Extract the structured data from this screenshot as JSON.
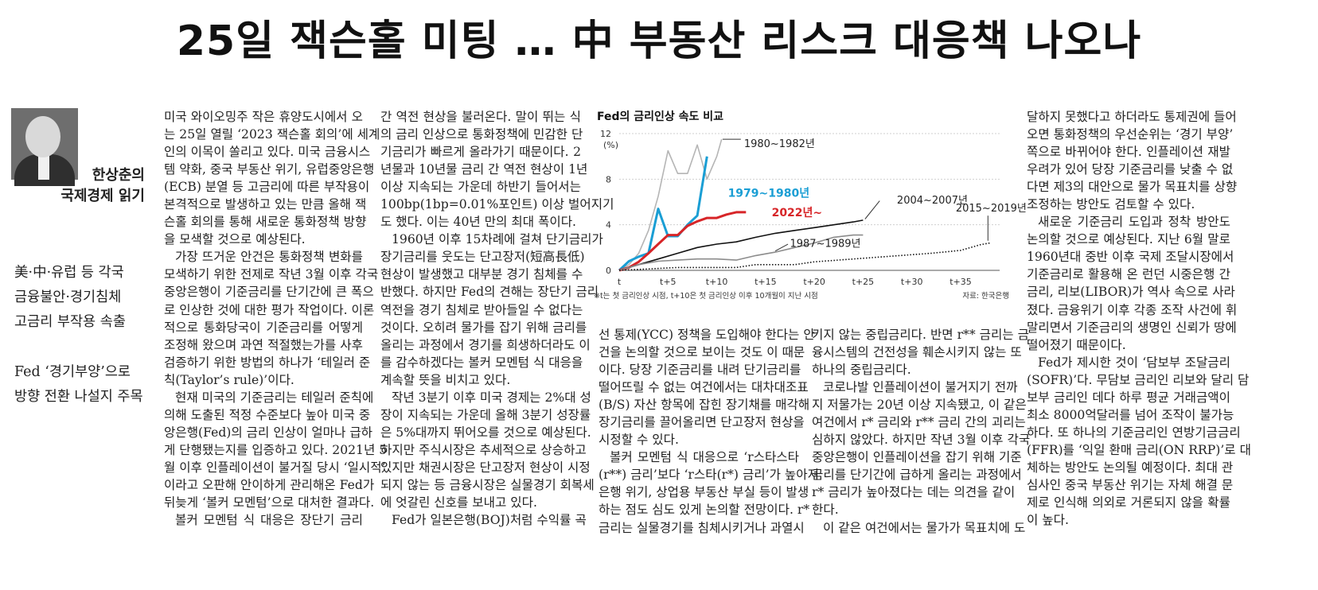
{
  "headline": "25일 잭슨홀 미팅 … 中 부동산 리스크 대응책 나오나",
  "author": {
    "name": "한상춘의",
    "column": "국제경제 읽기"
  },
  "subheads": [
    "美·中·유럽 등 각국",
    "금융불안·경기침체",
    "고금리 부작용 속출",
    "Fed ‘경기부양’으로",
    "방향 전환 나설지 주목"
  ],
  "columns": {
    "c1": [
      "미국 와이오밍주 작은 휴양도시에서 오",
      "는 25일 열릴 ‘2023 잭슨홀 회의’에 세계",
      "인의 이목이 쏠리고 있다. 미국 금융시스",
      "템 약화, 중국 부동산 위기, 유럽중앙은행",
      "(ECB) 분열 등 고금리에 따른 부작용이",
      "본격적으로 발생하고 있는 만큼 올해 잭",
      "슨홀 회의를 통해 새로운 통화정책 방향",
      "을 모색할 것으로 예상된다.",
      "가장 뜨거운 안건은 통화정책 변화를",
      "모색하기 위한 전제로 작년 3월 이후 각국",
      "중앙은행이 기준금리를 단기간에 큰 폭으",
      "로 인상한 것에 대한 평가 작업이다. 이론",
      "적으로 통화당국이 기준금리를 어떻게",
      "조정해 왔으며 과연 적절했는가를 사후",
      "검증하기 위한 방법의 하나가 ‘테일러 준",
      "칙(Taylor’s rule)’이다.",
      "현재 미국의 기준금리는 테일러 준칙에",
      "의해 도출된 적정 수준보다 높아 미국 중",
      "앙은행(Fed)의 금리 인상이 얼마나 급하",
      "게 단행됐는지를 입증하고 있다. 2021년 5",
      "월 이후 인플레이션이 불거질 당시 ‘일시적’",
      "이라고 오판해 안이하게 관리해온 Fed가",
      "뒤늦게 ‘볼커 모멘텀’으로 대처한 결과다.",
      "볼커 모멘텀 식 대응은 장단기 금리"
    ],
    "c2": [
      "간 역전 현상을 불러온다. 말이 뛰는 식",
      "의 금리 인상으로 통화정책에 민감한 단",
      "기금리가 빠르게 올라가기 때문이다. 2",
      "년물과 10년물 금리 간 역전 현상이 1년",
      "이상 지속되는 가운데 하반기 들어서는",
      "100bp(1bp=0.01%포인트) 이상 벌어지기",
      "도 했다. 이는 40년 만의 최대 폭이다.",
      "1960년 이후 15차례에 걸쳐 단기금리가",
      "장기금리를 웃도는 단고장저(短高長低)",
      "현상이 발생했고 대부분 경기 침체를 수",
      "반했다. 하지만 Fed의 견해는 장단기 금리",
      "역전을 경기 침체로 받아들일 수 없다는",
      "것이다. 오히려 물가를 잡기 위해 금리를",
      "올리는 과정에서 경기를 희생하더라도 이",
      "를 감수하겠다는 볼커 모멘텀 식 대응을",
      "계속할 뜻을 비치고 있다.",
      "작년 3분기 이후 미국 경제는 2%대 성",
      "장이 지속되는 가운데 올해 3분기 성장률",
      "은 5%대까지 뛰어오를 것으로 예상된다.",
      "하지만 주식시장은 추세적으로 상승하고",
      "있지만 채권시장은 단고장저 현상이 시정",
      "되지 않는 등 금융시장은 실물경기 회복세",
      "에 엇갈린 신호를 보내고 있다.",
      "Fed가 일본은행(BOJ)처럼 수익률 곡"
    ],
    "c3": [
      "선 통제(YCC) 정책을 도입해야 한다는 안",
      "건을 논의할 것으로 보이는 것도 이 때문",
      "이다. 당장 기준금리를 내려 단기금리를",
      "떨어뜨릴 수 없는 여건에서는 대차대조표",
      "(B/S) 자산 항목에 잡힌 장기채를 매각해",
      "장기금리를 끌어올리면 단고장저 현상을",
      "시정할 수 있다.",
      "볼커 모멘텀 식 대응으로 ‘r스타스타",
      "(r**) 금리’보다 ‘r스타(r*) 금리’가 높아져",
      "은행 위기, 상업용 부동산 부실 등이 발생",
      "하는 점도 심도 있게 논의할 전망이다. r*",
      "금리는 실물경기를 침체시키거나 과열시"
    ],
    "c4": [
      "키지 않는 중립금리다. 반면 r** 금리는 금",
      "융시스템의 건전성을 훼손시키지 않는 또",
      "하나의 중립금리다.",
      "코로나발 인플레이션이 불거지기 전까",
      "지 저물가는 20년 이상 지속됐고, 이 같은",
      "여건에서 r* 금리와 r** 금리 간의 괴리는",
      "심하지 않았다. 하지만 작년 3월 이후 각국",
      "중앙은행이 인플레이션을 잡기 위해 기준",
      "금리를 단기간에 급하게 올리는 과정에서",
      "r* 금리가 높아졌다는 데는 의견을 같이",
      "한다.",
      "이 같은 여건에서는 물가가 목표치에 도"
    ],
    "c5": [
      "달하지 못했다고 하더라도 통제권에 들어",
      "오면 통화정책의 우선순위는 ‘경기 부양’",
      "쪽으로 바뀌어야 한다. 인플레이션 재발",
      "우려가 있어 당장 기준금리를 낮출 수 없",
      "다면 제3의 대안으로 물가 목표치를 상향",
      "조정하는 방안도 검토할 수 있다.",
      "새로운 기준금리 도입과 정착 방안도",
      "논의할 것으로 예상된다. 지난 6월 말로",
      "1960년대 중반 이후 국제 조달시장에서",
      "기준금리로 활용해 온 런던 시중은행 간",
      "금리, 리보(LIBOR)가 역사 속으로 사라",
      "졌다. 금융위기 이후 각종 조작 사건에 휘",
      "말리면서 기준금리의 생명인 신뢰가 땅에",
      "떨어졌기 때문이다.",
      "Fed가 제시한 것이 ‘담보부 조달금리",
      "(SOFR)’다. 무담보 금리인 리보와 달리 담",
      "보부 금리인 데다 하루 평균 거래금액이",
      "최소 8000억달러를 넘어 조작이 불가능",
      "하다. 또 하나의 기준금리인 연방기금금리",
      "(FFR)를 ‘익일 환매 금리(ON RRP)’로 대",
      "체하는 방안도 논의될 예정이다. 최대 관",
      "심사인 중국 부동산 위기는 자체 해결 문",
      "제로 인식해 의외로 거론되지 않을 확률",
      "이 높다."
    ]
  },
  "chart_data": {
    "type": "line",
    "title": "Fed의 금리인상 속도 비교",
    "ylabel": "(%)",
    "ylim": [
      0,
      12
    ],
    "yticks": [
      0,
      4,
      8,
      12
    ],
    "xlim": [
      0,
      39
    ],
    "xticks": [
      {
        "x": 0,
        "label": "t"
      },
      {
        "x": 5,
        "label": "t+5"
      },
      {
        "x": 10,
        "label": "t+10"
      },
      {
        "x": 15,
        "label": "t+15"
      },
      {
        "x": 20,
        "label": "t+20"
      },
      {
        "x": 25,
        "label": "t+25"
      },
      {
        "x": 30,
        "label": "t+30"
      },
      {
        "x": 35,
        "label": "t+35"
      }
    ],
    "note": "※t는 첫 금리인상 시점, t+10은 첫 금리인상 이후 10개월이 지난 시점",
    "source": "자료: 한국은행",
    "series": [
      {
        "name": "1980~1982년",
        "color": "#b5b5b5",
        "style": "solid",
        "points": [
          [
            0,
            0
          ],
          [
            1,
            0.5
          ],
          [
            2,
            1.5
          ],
          [
            3,
            3.5
          ],
          [
            4,
            6.5
          ],
          [
            5,
            10.5
          ],
          [
            6,
            8.5
          ],
          [
            7,
            8.5
          ],
          [
            8,
            11
          ],
          [
            9,
            8
          ],
          [
            10,
            10
          ],
          [
            10.5,
            11.5
          ]
        ]
      },
      {
        "name": "1979~1980년",
        "color": "#1a9ed4",
        "style": "solid",
        "points": [
          [
            0,
            0
          ],
          [
            1,
            0.8
          ],
          [
            2,
            1.2
          ],
          [
            3,
            1.5
          ],
          [
            4,
            5.4
          ],
          [
            5,
            3
          ],
          [
            6,
            3
          ],
          [
            7,
            4
          ],
          [
            8,
            4.8
          ],
          [
            9,
            10
          ]
        ]
      },
      {
        "name": "2022년~",
        "color": "#d72528",
        "style": "solid",
        "points": [
          [
            0,
            0
          ],
          [
            1,
            0.25
          ],
          [
            2,
            0.75
          ],
          [
            3,
            1.5
          ],
          [
            4,
            2.3
          ],
          [
            5,
            3.1
          ],
          [
            6,
            3.1
          ],
          [
            7,
            3.9
          ],
          [
            8,
            4.3
          ],
          [
            9,
            4.6
          ],
          [
            10,
            4.6
          ],
          [
            11,
            4.9
          ],
          [
            12,
            5.1
          ],
          [
            13,
            5.1
          ]
        ]
      },
      {
        "name": "2004~2007년",
        "color": "#111111",
        "style": "solid",
        "points": [
          [
            0,
            0
          ],
          [
            2,
            0.5
          ],
          [
            4,
            1
          ],
          [
            6,
            1.5
          ],
          [
            8,
            2
          ],
          [
            10,
            2.3
          ],
          [
            12,
            2.5
          ],
          [
            14,
            2.9
          ],
          [
            16,
            3.25
          ],
          [
            18,
            3.5
          ],
          [
            20,
            3.75
          ],
          [
            22,
            4
          ],
          [
            24,
            4.25
          ],
          [
            25,
            4.4
          ]
        ]
      },
      {
        "name": "1987~1989년",
        "color": "#8c8c8c",
        "style": "solid",
        "points": [
          [
            0,
            0
          ],
          [
            2,
            0.5
          ],
          [
            4,
            0.8
          ],
          [
            6,
            0.9
          ],
          [
            8,
            1
          ],
          [
            10,
            1
          ],
          [
            12,
            0.9
          ],
          [
            14,
            1.3
          ],
          [
            16,
            1.6
          ],
          [
            18,
            2
          ],
          [
            20,
            2.4
          ],
          [
            22,
            2.9
          ],
          [
            24,
            3.1
          ],
          [
            25,
            3.1
          ]
        ]
      },
      {
        "name": "2015~2019년",
        "color": "#111111",
        "style": "dotted",
        "points": [
          [
            0,
            0
          ],
          [
            6,
            0.25
          ],
          [
            12,
            0.25
          ],
          [
            14,
            0.5
          ],
          [
            18,
            0.5
          ],
          [
            20,
            0.75
          ],
          [
            24,
            1
          ],
          [
            28,
            1.25
          ],
          [
            32,
            1.5
          ],
          [
            35,
            1.75
          ],
          [
            37,
            2.25
          ],
          [
            38,
            2.4
          ]
        ]
      }
    ]
  }
}
